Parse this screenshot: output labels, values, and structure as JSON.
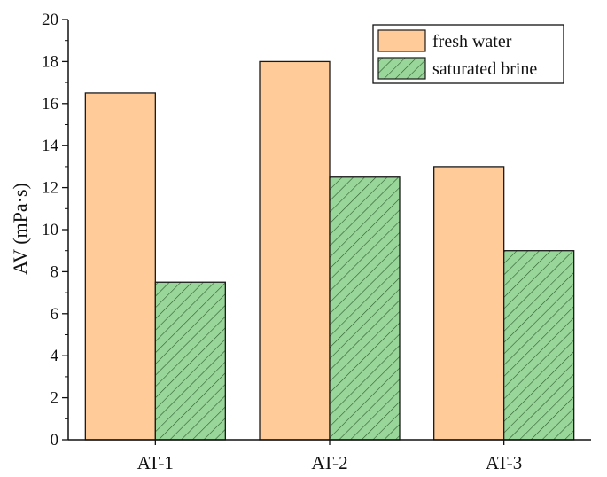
{
  "chart_data": {
    "type": "bar",
    "title": "",
    "xlabel": "",
    "ylabel": "AV (mPa·s)",
    "categories": [
      "AT-1",
      "AT-2",
      "AT-3"
    ],
    "series": [
      {
        "name": "fresh water",
        "values": [
          16.5,
          18.0,
          13.0
        ],
        "color": "#FFCC99",
        "pattern": "solid"
      },
      {
        "name": "saturated brine",
        "values": [
          7.5,
          12.5,
          9.0
        ],
        "color": "#99D699",
        "pattern": "diagonal-hatch"
      }
    ],
    "ylim": [
      0,
      20
    ],
    "yticks": [
      "0",
      "2",
      "4",
      "6",
      "8",
      "10",
      "12",
      "14",
      "16",
      "18",
      "20"
    ],
    "grid": false,
    "legend_position": "top-right"
  }
}
